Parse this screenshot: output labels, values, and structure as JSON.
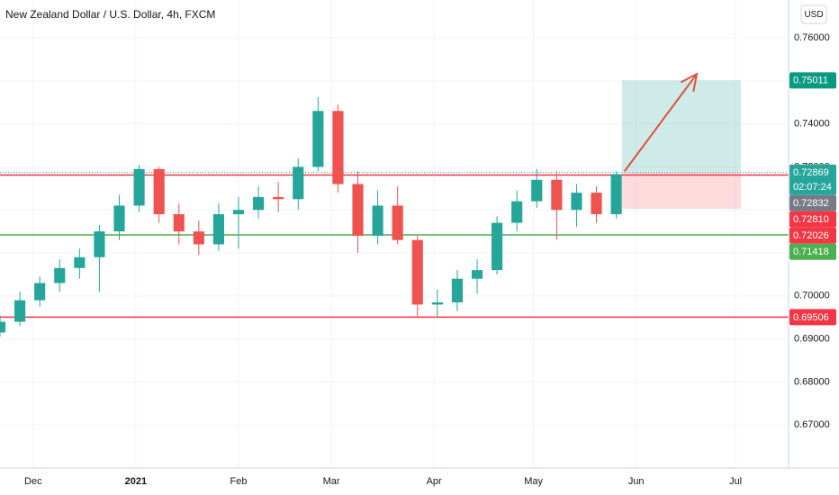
{
  "chart_data": {
    "type": "candlestick",
    "title": "New Zealand Dollar / U.S. Dollar, 4h, FXCM",
    "currency": "USD",
    "x": [
      -10,
      -4,
      2,
      8,
      14,
      20,
      26,
      32,
      38,
      44,
      50,
      56,
      62,
      68,
      74,
      80,
      86,
      92,
      98,
      104,
      110,
      116,
      122,
      128,
      134,
      140,
      146,
      152,
      158,
      164,
      170,
      176
    ],
    "open": [
      0.6915,
      0.694,
      0.699,
      0.703,
      0.7065,
      0.709,
      0.715,
      0.721,
      0.7295,
      0.719,
      0.715,
      0.712,
      0.719,
      0.72,
      0.723,
      0.7225,
      0.73,
      0.743,
      0.726,
      0.714,
      0.721,
      0.713,
      0.698,
      0.6985,
      0.704,
      0.706,
      0.717,
      0.722,
      0.727,
      0.72,
      0.724,
      0.719
    ],
    "high": [
      0.6955,
      0.701,
      0.7045,
      0.7085,
      0.711,
      0.7165,
      0.7235,
      0.7305,
      0.73,
      0.7215,
      0.7175,
      0.7215,
      0.723,
      0.7255,
      0.7265,
      0.732,
      0.7462,
      0.7445,
      0.729,
      0.7245,
      0.7255,
      0.714,
      0.7015,
      0.706,
      0.7085,
      0.7185,
      0.7245,
      0.7295,
      0.729,
      0.726,
      0.7255,
      0.729
    ],
    "low": [
      0.6905,
      0.693,
      0.6975,
      0.701,
      0.704,
      0.701,
      0.713,
      0.7195,
      0.717,
      0.712,
      0.7095,
      0.7105,
      0.711,
      0.718,
      0.7195,
      0.72,
      0.729,
      0.724,
      0.71,
      0.712,
      0.712,
      0.695,
      0.695,
      0.6965,
      0.7005,
      0.705,
      0.715,
      0.7205,
      0.713,
      0.716,
      0.717,
      0.718
    ],
    "close": [
      0.694,
      0.699,
      0.703,
      0.7065,
      0.709,
      0.715,
      0.721,
      0.7295,
      0.719,
      0.715,
      0.712,
      0.719,
      0.72,
      0.723,
      0.7225,
      0.73,
      0.743,
      0.726,
      0.714,
      0.721,
      0.713,
      0.698,
      0.6985,
      0.704,
      0.706,
      0.717,
      0.722,
      0.727,
      0.72,
      0.724,
      0.719,
      0.7283
    ],
    "up_color": "#26a69a",
    "down_color": "#ef5350",
    "xlim": [
      -10,
      228
    ],
    "xticks": [
      {
        "value": 0,
        "label": "Dec"
      },
      {
        "value": 31,
        "label": "2021"
      },
      {
        "value": 62,
        "label": "Feb"
      },
      {
        "value": 90,
        "label": "Mar"
      },
      {
        "value": 121,
        "label": "Apr"
      },
      {
        "value": 151,
        "label": "May"
      },
      {
        "value": 182,
        "label": "Jun"
      },
      {
        "value": 212,
        "label": "Jul"
      }
    ],
    "ylim": [
      0.66,
      0.7688
    ],
    "yticks": [
      {
        "value": 0.67,
        "label": "0.67000"
      },
      {
        "value": 0.68,
        "label": "0.68000"
      },
      {
        "value": 0.69,
        "label": "0.69000"
      },
      {
        "value": 0.7,
        "label": "0.70000"
      },
      {
        "value": 0.71,
        "label": "0.71000"
      },
      {
        "value": 0.72,
        "label": "0.72000"
      },
      {
        "value": 0.73,
        "label": "0.73000"
      },
      {
        "value": 0.74,
        "label": "0.74000"
      },
      {
        "value": 0.75,
        "label": "0.75000"
      },
      {
        "value": 0.76,
        "label": "0.76000"
      }
    ],
    "grid": true,
    "lines": [
      {
        "value": 0.7281,
        "color": "#f23645"
      },
      {
        "value": 0.71418,
        "color": "#4caf50"
      },
      {
        "value": 0.69506,
        "color": "#f23645"
      }
    ],
    "position": {
      "x": [
        177.7,
        213.6
      ],
      "entry": 0.72869,
      "target": 0.75011,
      "stop": 0.72026
    },
    "arrow": {
      "x": [
        178.5,
        200.3
      ],
      "y": [
        0.729,
        0.7516
      ],
      "color": "#e0503a"
    },
    "price_labels": [
      {
        "value": 0.75011,
        "label": "0.75011",
        "color": "#089981"
      },
      {
        "value": 0.72869,
        "label": "0.72869",
        "color": "#26a69a",
        "countdown": "02:07:24"
      },
      {
        "value": 0.72832,
        "label": "0.72832",
        "color": "#787b86"
      },
      {
        "value": 0.7281,
        "label": "0.72810",
        "color": "#f23645"
      },
      {
        "value": 0.72026,
        "label": "0.72026",
        "color": "#f23645"
      },
      {
        "value": 0.71418,
        "label": "0.71418",
        "color": "#4caf50"
      },
      {
        "value": 0.69506,
        "label": "0.69506",
        "color": "#f23645"
      }
    ]
  }
}
